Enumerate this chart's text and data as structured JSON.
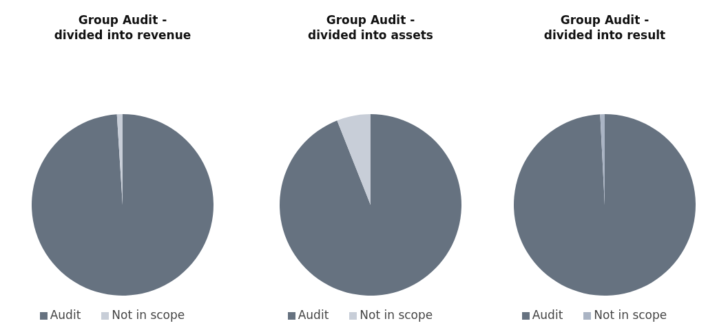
{
  "chart_data": [
    {
      "type": "pie",
      "title": "Group Audit -\ndivided into revenue",
      "categories": [
        "Audit",
        "Not in scope"
      ],
      "values": [
        99,
        1
      ],
      "colors": [
        "#667280",
        "#c8ced8"
      ],
      "legend": "bottom"
    },
    {
      "type": "pie",
      "title": "Group Audit -\ndivided into assets",
      "categories": [
        "Audit",
        "Not in scope"
      ],
      "values": [
        94,
        6
      ],
      "colors": [
        "#667280",
        "#c8ced8"
      ],
      "legend": "bottom"
    },
    {
      "type": "pie",
      "title": "Group Audit -\ndivided into result",
      "categories": [
        "Audit",
        "Not in scope"
      ],
      "values": [
        99.2,
        0.8
      ],
      "colors": [
        "#667280",
        "#aab4c4"
      ],
      "legend": "bottom"
    }
  ]
}
